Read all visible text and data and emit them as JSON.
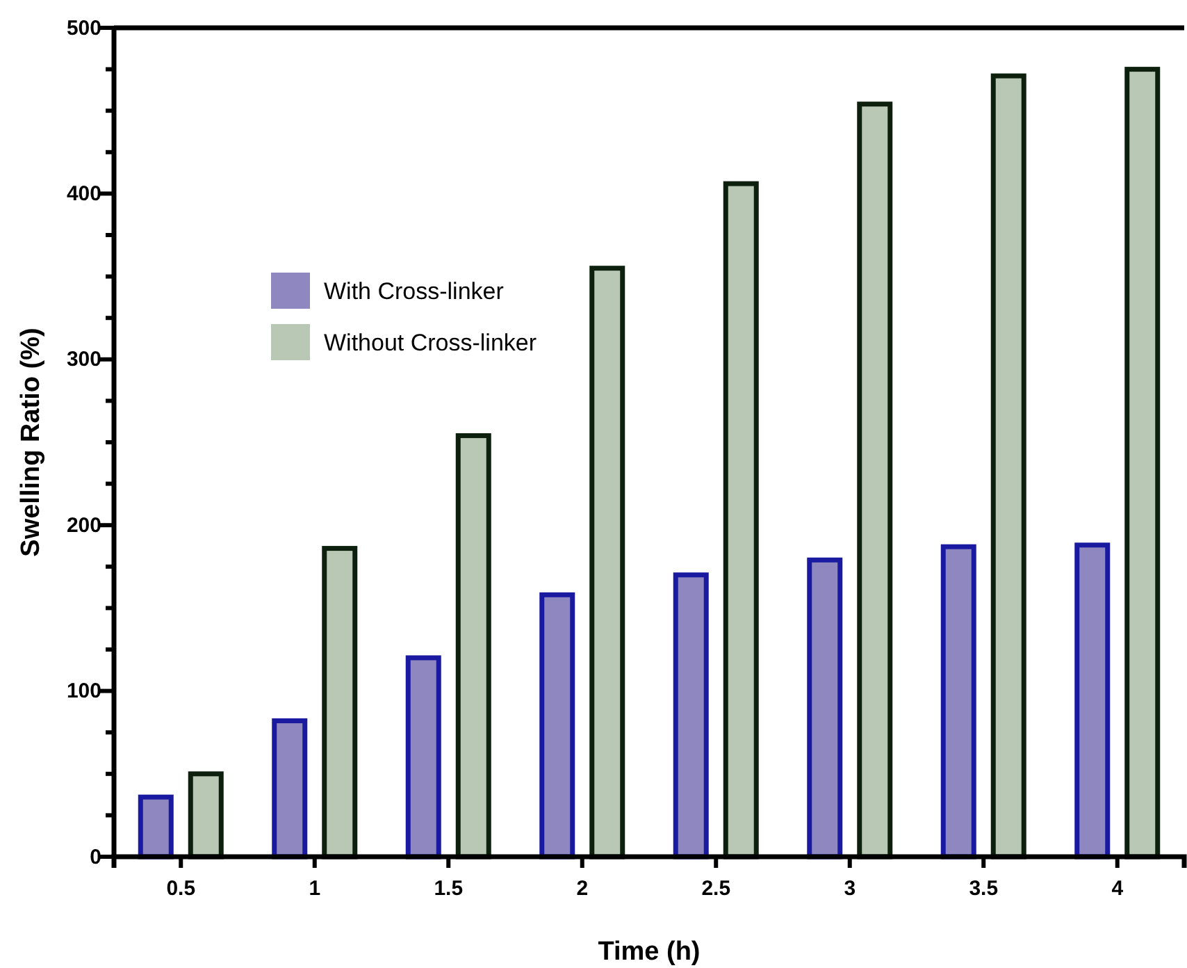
{
  "chart_data": {
    "type": "bar",
    "xlabel": "Time (h)",
    "ylabel": "Swelling Ratio (%)",
    "categories": [
      "0.5",
      "1",
      "1.5",
      "2",
      "2.5",
      "3",
      "3.5",
      "4"
    ],
    "series": [
      {
        "name": "With Cross-linker",
        "color": "#8f87c0",
        "values": [
          36,
          82,
          120,
          158,
          170,
          179,
          187,
          188
        ]
      },
      {
        "name": "Without Cross-linker",
        "color": "#b9c7b5",
        "values": [
          50,
          186,
          254,
          355,
          406,
          454,
          471,
          475
        ]
      }
    ],
    "ylim": [
      0,
      500
    ],
    "yticks": [
      0,
      {
        "value": 25,
        "label": null
      },
      {
        "value": 50,
        "label": null
      },
      {
        "value": 75,
        "label": null
      },
      100,
      {
        "value": 125,
        "label": null
      },
      {
        "value": 150,
        "label": null
      },
      {
        "value": 175,
        "label": null
      },
      200,
      {
        "value": 225,
        "label": null
      },
      {
        "value": 250,
        "label": null
      },
      {
        "value": 275,
        "label": null
      },
      300,
      {
        "value": 325,
        "label": null
      },
      {
        "value": 350,
        "label": null
      },
      {
        "value": 375,
        "label": null
      },
      400,
      {
        "value": 425,
        "label": null
      },
      {
        "value": 450,
        "label": null
      },
      {
        "value": 475,
        "label": null
      },
      500
    ],
    "grid": false,
    "legend": "top left"
  }
}
